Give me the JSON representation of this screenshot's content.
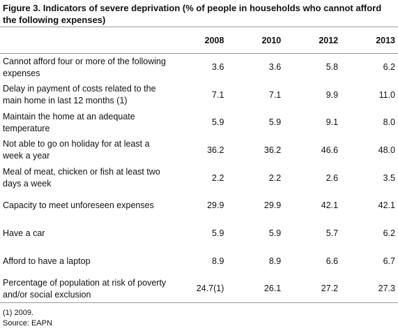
{
  "header": {
    "title": "Figure 3. Indicators of severe deprivation (% of people in households who cannot afford the following expenses)"
  },
  "table": {
    "columns": [
      "2008",
      "2010",
      "2012",
      "2013"
    ],
    "rows": [
      [
        "Cannot afford four or more of the following expenses",
        "3.6",
        "3.6",
        "5.8",
        "6.2"
      ],
      [
        "Delay in payment of costs related to the main home in last 12 months (1)",
        "7.1",
        "7.1",
        "9.9",
        "11.0"
      ],
      [
        "Maintain the home at an adequate temperature",
        "5.9",
        "5.9",
        "9.1",
        "8.0"
      ],
      [
        "Not able to go on holiday for at least a week a year",
        "36.2",
        "36.2",
        "46.6",
        "48.0"
      ],
      [
        "Meal of meat, chicken or fish at least two days a week",
        "2.2",
        "2.2",
        "2.6",
        "3.5"
      ],
      [
        "Capacity to meet unforeseen expenses",
        "29.9",
        "29.9",
        "42.1",
        "42.1"
      ],
      [
        "Have a car",
        "5.9",
        "5.9",
        "5.7",
        "6.2"
      ],
      [
        "Afford to have a laptop",
        "8.9",
        "8.9",
        "6.6",
        "6.7"
      ],
      [
        "Percentage of population at risk of poverty and/or social exclusion",
        "24.7(1)",
        "26.1",
        "27.2",
        "27.3"
      ]
    ]
  },
  "footnotes": [
    "(1) 2009.",
    "Source: EAPN"
  ]
}
